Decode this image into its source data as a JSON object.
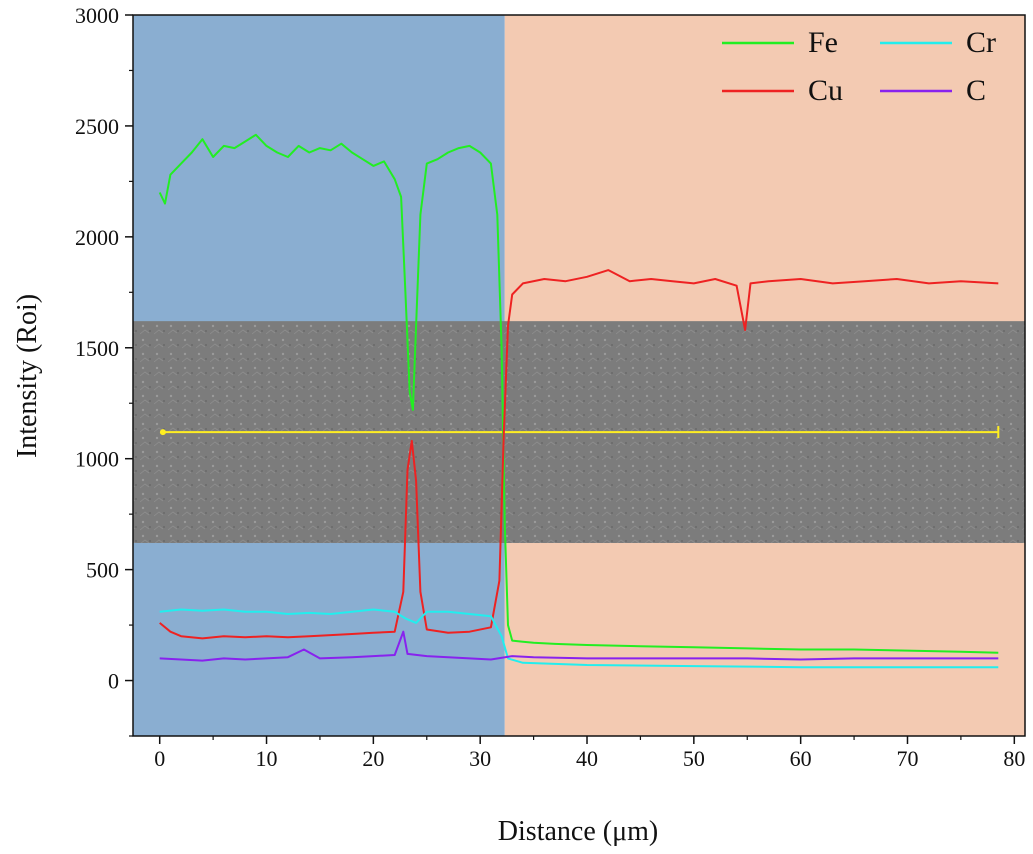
{
  "chart_data": {
    "type": "line",
    "xlabel": "Distance (μm)",
    "ylabel": "Intensity (Roi)",
    "xlim": [
      -2.5,
      81
    ],
    "ylim": [
      -250,
      3000
    ],
    "x_ticks": [
      0,
      10,
      20,
      30,
      40,
      50,
      60,
      70,
      80
    ],
    "y_ticks": [
      0,
      500,
      1000,
      1500,
      2000,
      2500,
      3000
    ],
    "grid": false,
    "legend_position": "top-right",
    "regions": [
      {
        "x_start": -2.5,
        "x_end": 32.3,
        "color": "#8aaed1"
      },
      {
        "x_start": 32.3,
        "x_end": 81,
        "color": "#f3cab2"
      }
    ],
    "inset_image": {
      "description": "SEM micrograph band with yellow scan line",
      "y_top": 1620,
      "y_bottom": 620,
      "scan_line_y": 1120,
      "scan_line_x": [
        0.3,
        78.5
      ],
      "scan_line_color": "#ffee22"
    },
    "series": [
      {
        "name": "Fe",
        "color": "#22ee22",
        "points": [
          [
            0,
            2200
          ],
          [
            0.5,
            2150
          ],
          [
            1,
            2280
          ],
          [
            2,
            2330
          ],
          [
            3,
            2380
          ],
          [
            4,
            2440
          ],
          [
            5,
            2360
          ],
          [
            6,
            2410
          ],
          [
            7,
            2400
          ],
          [
            8,
            2430
          ],
          [
            9,
            2460
          ],
          [
            10,
            2410
          ],
          [
            11,
            2380
          ],
          [
            12,
            2360
          ],
          [
            13,
            2410
          ],
          [
            14,
            2380
          ],
          [
            15,
            2400
          ],
          [
            16,
            2390
          ],
          [
            17,
            2420
          ],
          [
            18,
            2380
          ],
          [
            19,
            2350
          ],
          [
            20,
            2320
          ],
          [
            21,
            2340
          ],
          [
            22,
            2260
          ],
          [
            22.6,
            2180
          ],
          [
            23.0,
            1750
          ],
          [
            23.4,
            1300
          ],
          [
            23.7,
            1220
          ],
          [
            24.0,
            1600
          ],
          [
            24.4,
            2100
          ],
          [
            25,
            2330
          ],
          [
            26,
            2350
          ],
          [
            27,
            2380
          ],
          [
            28,
            2400
          ],
          [
            29,
            2410
          ],
          [
            30,
            2380
          ],
          [
            31,
            2330
          ],
          [
            31.6,
            2100
          ],
          [
            32.0,
            1500
          ],
          [
            32.3,
            700
          ],
          [
            32.6,
            250
          ],
          [
            33,
            180
          ],
          [
            34,
            175
          ],
          [
            35,
            170
          ],
          [
            37,
            165
          ],
          [
            40,
            160
          ],
          [
            45,
            155
          ],
          [
            50,
            150
          ],
          [
            55,
            145
          ],
          [
            60,
            140
          ],
          [
            65,
            140
          ],
          [
            70,
            135
          ],
          [
            75,
            130
          ],
          [
            78.5,
            125
          ]
        ]
      },
      {
        "name": "Cu",
        "color": "#ee2222",
        "points": [
          [
            0,
            260
          ],
          [
            1,
            220
          ],
          [
            2,
            200
          ],
          [
            4,
            190
          ],
          [
            6,
            200
          ],
          [
            8,
            195
          ],
          [
            10,
            200
          ],
          [
            12,
            195
          ],
          [
            14,
            200
          ],
          [
            16,
            205
          ],
          [
            18,
            210
          ],
          [
            20,
            215
          ],
          [
            22,
            220
          ],
          [
            22.8,
            400
          ],
          [
            23.2,
            950
          ],
          [
            23.6,
            1080
          ],
          [
            24.0,
            900
          ],
          [
            24.4,
            400
          ],
          [
            25,
            230
          ],
          [
            27,
            215
          ],
          [
            29,
            220
          ],
          [
            31,
            240
          ],
          [
            31.8,
            450
          ],
          [
            32.2,
            1100
          ],
          [
            32.6,
            1600
          ],
          [
            33,
            1740
          ],
          [
            34,
            1790
          ],
          [
            36,
            1810
          ],
          [
            38,
            1800
          ],
          [
            40,
            1820
          ],
          [
            42,
            1850
          ],
          [
            44,
            1800
          ],
          [
            46,
            1810
          ],
          [
            48,
            1800
          ],
          [
            50,
            1790
          ],
          [
            52,
            1810
          ],
          [
            54,
            1780
          ],
          [
            54.8,
            1580
          ],
          [
            55.3,
            1790
          ],
          [
            57,
            1800
          ],
          [
            60,
            1810
          ],
          [
            63,
            1790
          ],
          [
            66,
            1800
          ],
          [
            69,
            1810
          ],
          [
            72,
            1790
          ],
          [
            75,
            1800
          ],
          [
            78.5,
            1790
          ]
        ]
      },
      {
        "name": "Cr",
        "color": "#22eeee",
        "points": [
          [
            0,
            310
          ],
          [
            2,
            320
          ],
          [
            4,
            315
          ],
          [
            6,
            320
          ],
          [
            8,
            310
          ],
          [
            10,
            310
          ],
          [
            12,
            300
          ],
          [
            14,
            305
          ],
          [
            16,
            300
          ],
          [
            18,
            310
          ],
          [
            20,
            320
          ],
          [
            22,
            310
          ],
          [
            23,
            280
          ],
          [
            24,
            260
          ],
          [
            25,
            310
          ],
          [
            27,
            310
          ],
          [
            29,
            300
          ],
          [
            31,
            290
          ],
          [
            32,
            200
          ],
          [
            32.6,
            100
          ],
          [
            34,
            80
          ],
          [
            40,
            70
          ],
          [
            50,
            65
          ],
          [
            60,
            60
          ],
          [
            70,
            60
          ],
          [
            78.5,
            60
          ]
        ]
      },
      {
        "name": "C",
        "color": "#8822ee",
        "points": [
          [
            0,
            100
          ],
          [
            2,
            95
          ],
          [
            4,
            90
          ],
          [
            6,
            100
          ],
          [
            8,
            95
          ],
          [
            10,
            100
          ],
          [
            12,
            105
          ],
          [
            13.5,
            140
          ],
          [
            15,
            100
          ],
          [
            18,
            105
          ],
          [
            20,
            110
          ],
          [
            22,
            115
          ],
          [
            22.8,
            220
          ],
          [
            23.2,
            120
          ],
          [
            25,
            110
          ],
          [
            27,
            105
          ],
          [
            29,
            100
          ],
          [
            31,
            95
          ],
          [
            33,
            110
          ],
          [
            35,
            105
          ],
          [
            40,
            100
          ],
          [
            45,
            100
          ],
          [
            50,
            100
          ],
          [
            55,
            100
          ],
          [
            60,
            95
          ],
          [
            65,
            100
          ],
          [
            70,
            100
          ],
          [
            75,
            100
          ],
          [
            78.5,
            100
          ]
        ]
      }
    ]
  }
}
